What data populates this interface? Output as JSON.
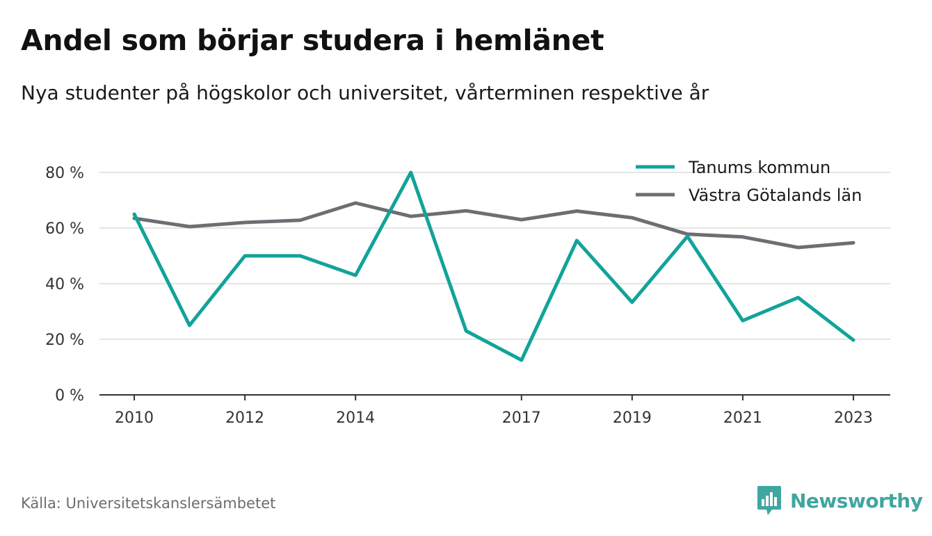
{
  "header": {
    "title": "Andel som börjar studera i hemlänet",
    "subtitle": "Nya studenter på högskolor och universitet, vårterminen respektive år"
  },
  "footer": {
    "source": "Källa: Universitetskanslersämbetet",
    "brand": "Newsworthy"
  },
  "colors": {
    "series_1": "#12a39a",
    "series_2": "#6e6d73",
    "grid": "#dcdcdc",
    "axis": "#333333",
    "brand": "#3fa6a0"
  },
  "chart_data": {
    "type": "line",
    "title": "Andel som börjar studera i hemlänet",
    "subtitle": "Nya studenter på högskolor och universitet, vårterminen respektive år",
    "xlabel": "",
    "ylabel": "",
    "x": [
      2010,
      2011,
      2012,
      2013,
      2014,
      2015,
      2016,
      2017,
      2018,
      2019,
      2020,
      2021,
      2022,
      2023
    ],
    "x_ticks": [
      "2010",
      "2012",
      "2014",
      "2017",
      "2019",
      "2021",
      "2023"
    ],
    "y_ticks": [
      "0 %",
      "20 %",
      "40 %",
      "60 %",
      "80 %"
    ],
    "ylim": [
      0,
      80
    ],
    "grid": true,
    "legend_position": "top-right",
    "series": [
      {
        "name": "Tanums kommun",
        "color": "#12a39a",
        "values": [
          65,
          25,
          50,
          50,
          43,
          80,
          23,
          12.5,
          55.5,
          33.3,
          57,
          26.7,
          35,
          19.7
        ]
      },
      {
        "name": "Västra Götalands län",
        "color": "#6e6d73",
        "values": [
          63.5,
          60.5,
          62,
          62.8,
          69,
          64.2,
          66.2,
          63,
          66.1,
          63.7,
          57.8,
          56.8,
          53,
          54.7
        ]
      }
    ]
  }
}
